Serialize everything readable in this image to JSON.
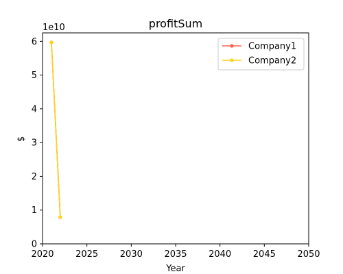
{
  "chart_data": {
    "type": "line",
    "title": "profitSum",
    "xlabel": "Year",
    "ylabel": "$",
    "y_offset_label": "1e10",
    "xlim": [
      2020,
      2050
    ],
    "ylim": [
      0,
      6.25
    ],
    "x_ticks": [
      2020,
      2025,
      2030,
      2035,
      2040,
      2045,
      2050
    ],
    "y_ticks": [
      0,
      1,
      2,
      3,
      4,
      5,
      6
    ],
    "grid": false,
    "legend_position": "top-right",
    "series": [
      {
        "name": "Company1",
        "color": "#ff6347",
        "x": [
          2021,
          2022
        ],
        "y": [
          5.97,
          0.79
        ]
      },
      {
        "name": "Company2",
        "color": "#ffd21a",
        "x": [
          2021,
          2022
        ],
        "y": [
          5.97,
          0.79
        ]
      }
    ]
  }
}
